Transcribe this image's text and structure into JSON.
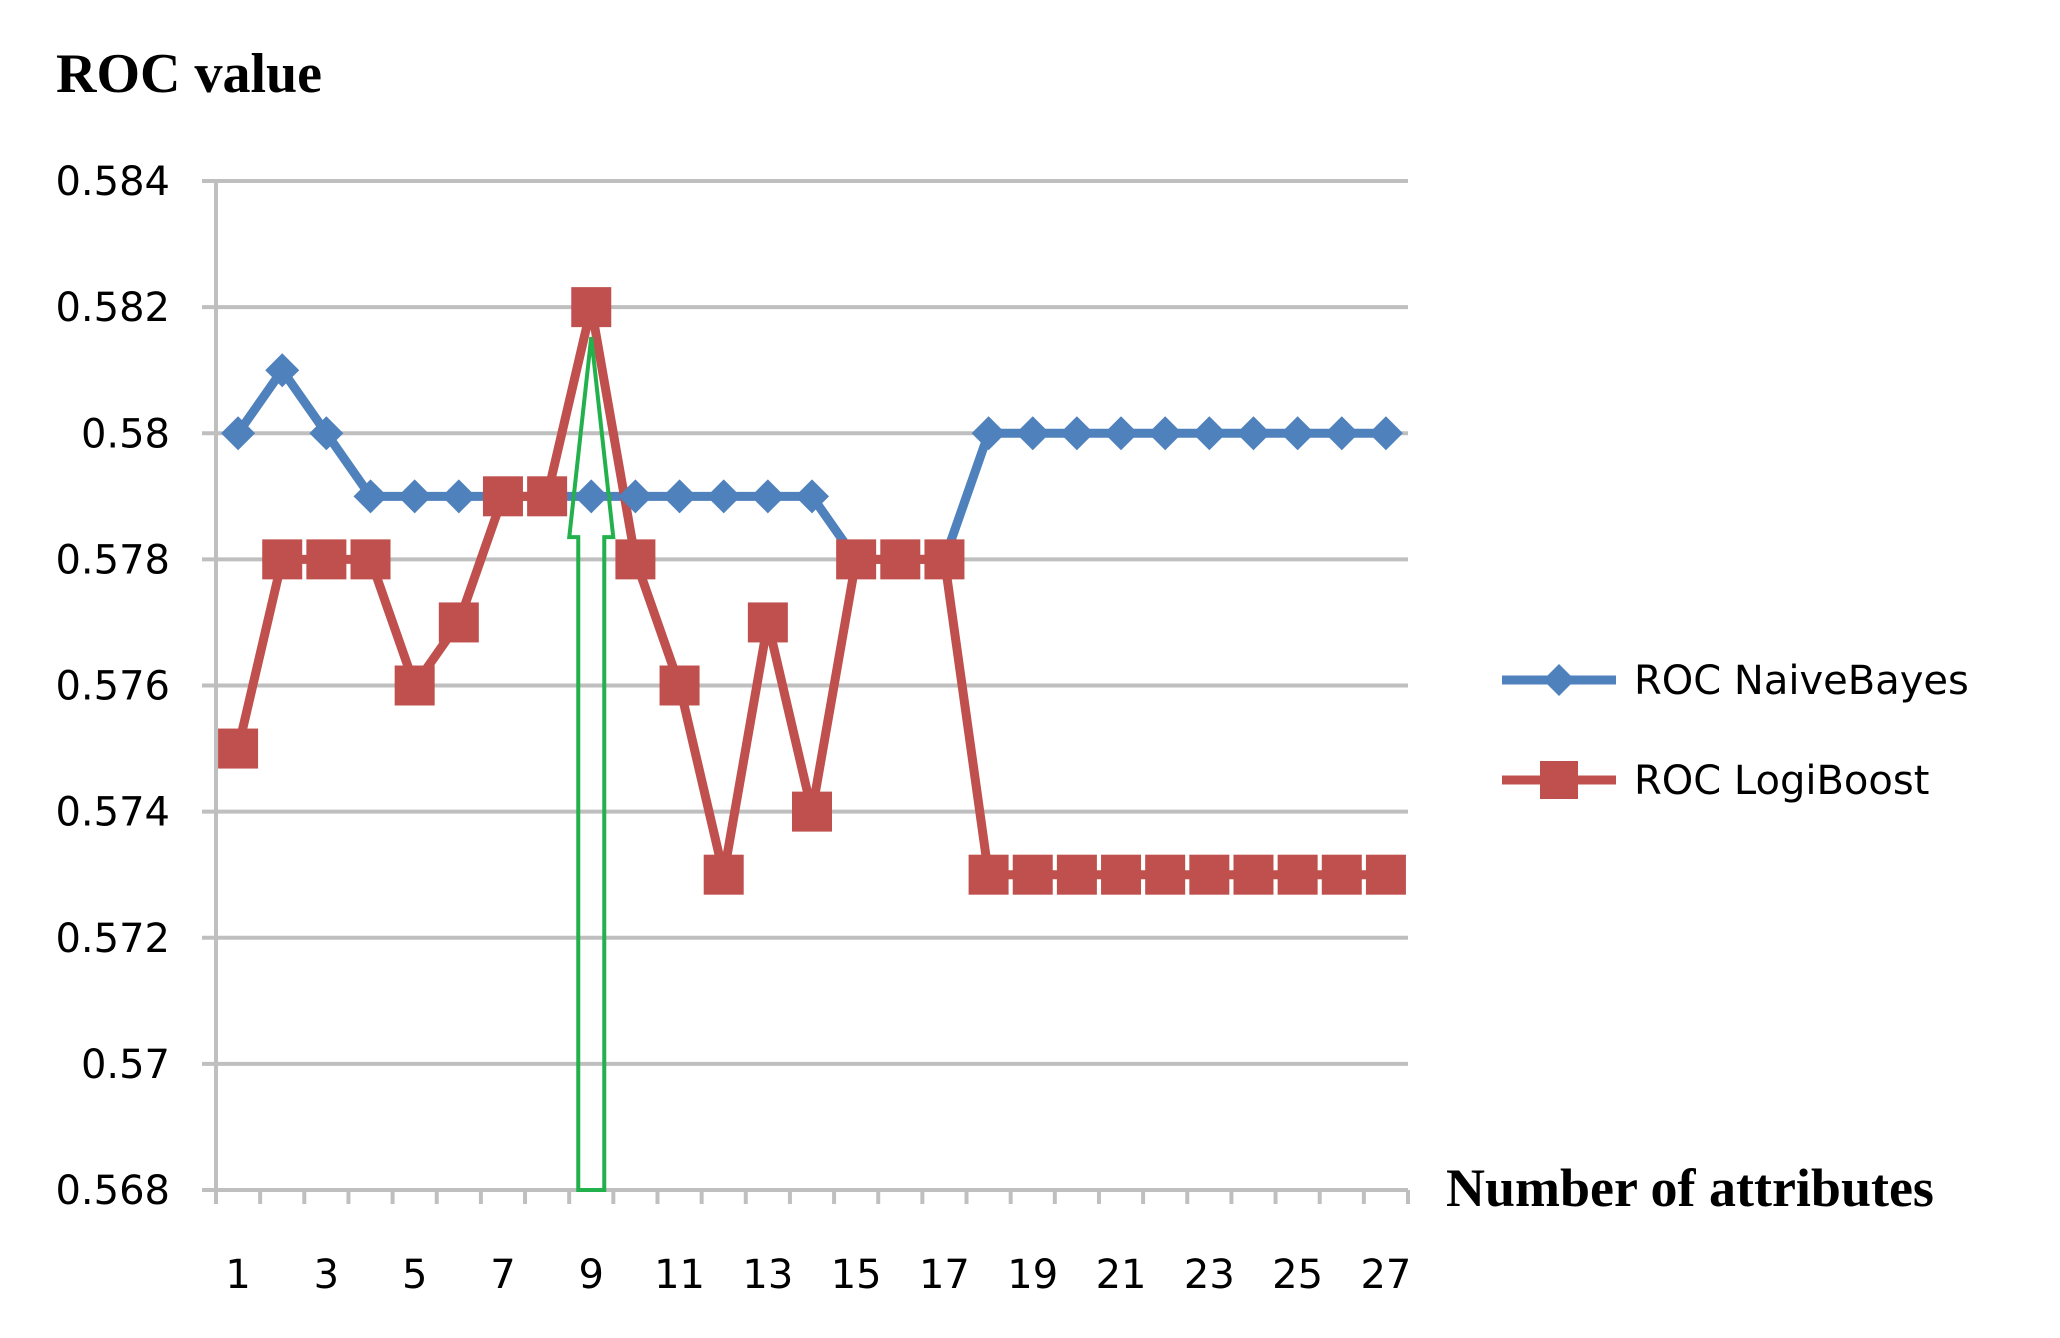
{
  "chart_data": {
    "type": "line",
    "title": "",
    "ylabel": "ROC value",
    "xlabel": "Number of attributes",
    "ylim": [
      0.568,
      0.584
    ],
    "yticks": [
      0.568,
      0.57,
      0.572,
      0.574,
      0.576,
      0.578,
      0.58,
      0.582,
      0.584
    ],
    "ytick_labels": [
      "0.568",
      "0.57",
      "0.572",
      "0.574",
      "0.576",
      "0.578",
      "0.58",
      "0.582",
      "0.584"
    ],
    "x": [
      1,
      2,
      3,
      4,
      5,
      6,
      7,
      8,
      9,
      10,
      11,
      12,
      13,
      14,
      15,
      16,
      17,
      18,
      19,
      20,
      21,
      22,
      23,
      24,
      25,
      26,
      27
    ],
    "xtick_labels": [
      "1",
      "3",
      "5",
      "7",
      "9",
      "11",
      "13",
      "15",
      "17",
      "19",
      "21",
      "23",
      "25",
      "27"
    ],
    "grid": true,
    "legend_position": "right",
    "series": [
      {
        "name": "ROC NaiveBayes",
        "color": "#4f81bd",
        "marker": "diamond",
        "values": [
          0.58,
          0.581,
          0.58,
          0.579,
          0.579,
          0.579,
          0.579,
          0.579,
          0.579,
          0.579,
          0.579,
          0.579,
          0.579,
          0.579,
          0.578,
          0.578,
          0.578,
          0.58,
          0.58,
          0.58,
          0.58,
          0.58,
          0.58,
          0.58,
          0.58,
          0.58,
          0.58
        ]
      },
      {
        "name": "ROC LogiBoost",
        "color": "#c0504d",
        "marker": "square",
        "values": [
          0.575,
          0.578,
          0.578,
          0.578,
          0.576,
          0.577,
          0.579,
          0.579,
          0.582,
          0.578,
          0.576,
          0.573,
          0.577,
          0.574,
          0.578,
          0.578,
          0.578,
          0.573,
          0.573,
          0.573,
          0.573,
          0.573,
          0.573,
          0.573,
          0.573,
          0.573,
          0.573
        ]
      }
    ],
    "annotations": [
      {
        "type": "arrow",
        "color": "#22b14c",
        "x": 9,
        "points_to": 0.582
      }
    ]
  }
}
